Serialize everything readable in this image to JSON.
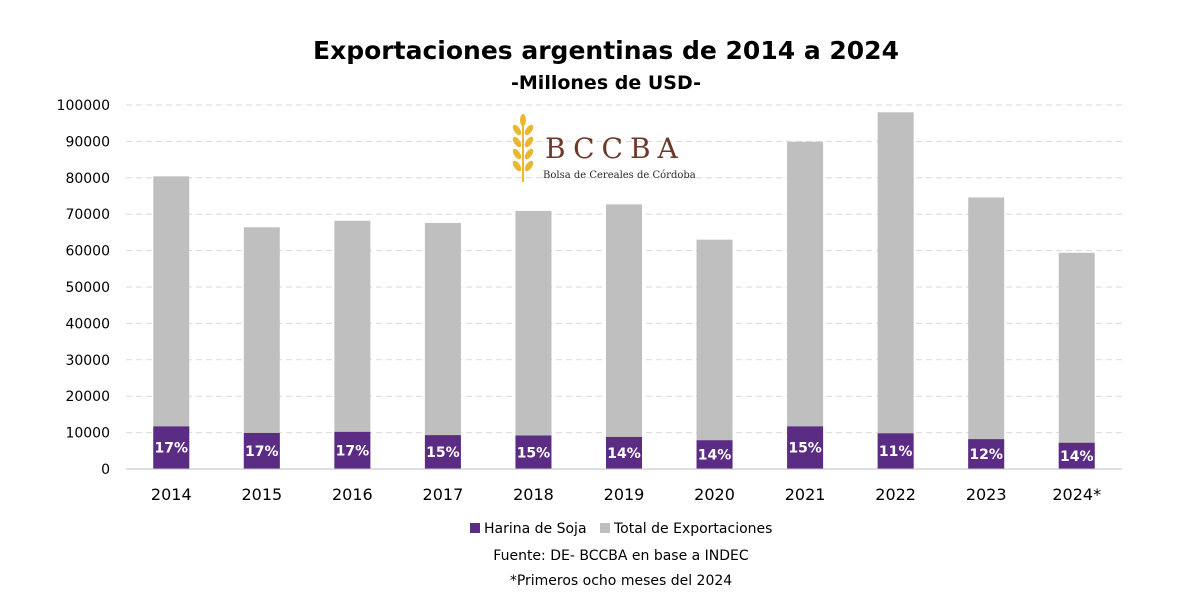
{
  "chart_data": {
    "type": "bar",
    "title": "Exportaciones argentinas de 2014 a 2024",
    "subtitle": "-Millones de USD-",
    "categories": [
      "2014",
      "2015",
      "2016",
      "2017",
      "2018",
      "2019",
      "2020",
      "2021",
      "2022",
      "2023",
      "2024*"
    ],
    "series": [
      {
        "name": "Harina de Soja",
        "color": "#5b2c83",
        "values": [
          11700,
          9900,
          10200,
          9300,
          9200,
          8800,
          7900,
          11700,
          9800,
          8200,
          7200
        ],
        "labels": [
          "17%",
          "17%",
          "17%",
          "15%",
          "15%",
          "14%",
          "14%",
          "15%",
          "11%",
          "12%",
          "14%"
        ]
      },
      {
        "name": "Total de Exportaciones",
        "color": "#bfbfbf",
        "values": [
          80400,
          66400,
          68200,
          67600,
          70900,
          72700,
          63000,
          89900,
          98000,
          74600,
          59400
        ]
      }
    ],
    "ylim": [
      0,
      100000
    ],
    "yticks": [
      0,
      10000,
      20000,
      30000,
      40000,
      50000,
      60000,
      70000,
      80000,
      90000,
      100000
    ],
    "grid": true,
    "legend": "bottom"
  },
  "logo": {
    "name": "BCCBA",
    "subtitle": "Bolsa de Cereales de Córdoba",
    "icon": "wheat-icon"
  },
  "notes": {
    "source": "Fuente: DE- BCCBA en base a INDEC",
    "footnote": "*Primeros ocho meses del 2024"
  }
}
